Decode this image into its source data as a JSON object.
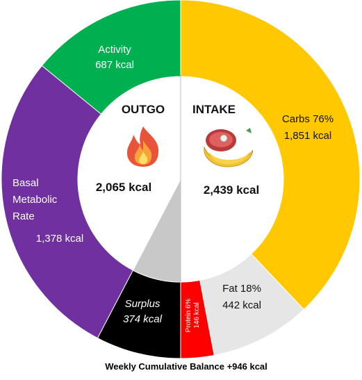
{
  "chart_data": {
    "type": "donut",
    "footer": "Weekly Cumulative Balance +946 kcal",
    "outgo": {
      "heading": "OUTGO",
      "total_label": "2,065 kcal",
      "total": 2065,
      "icon": "flame-icon",
      "segments": [
        {
          "key": "activity",
          "name": "Activity",
          "value": 687,
          "value_label": "687 kcal",
          "color": "#00B050"
        },
        {
          "key": "bmr",
          "name": "Basal Metabolic Rate",
          "value": 1378,
          "value_label": "1,378 kcal",
          "color": "#7030A0"
        }
      ],
      "surplus": {
        "name": "Surplus",
        "value": 374,
        "value_label": "374 kcal",
        "color": "#000000",
        "inner_color": "#C8C8C8"
      }
    },
    "intake": {
      "heading": "INTAKE",
      "total_label": "2,439 kcal",
      "total": 2439,
      "icon": "food-icon",
      "segments": [
        {
          "key": "carbs",
          "name": "Carbs 76%",
          "percent": 76,
          "value": 1851,
          "value_label": "1,851 kcal",
          "color": "#FFC800"
        },
        {
          "key": "fat",
          "name": "Fat 18%",
          "percent": 18,
          "value": 442,
          "value_label": "442 kcal",
          "color": "#E6E6E6"
        },
        {
          "key": "protein",
          "name": "Protein 6%",
          "percent": 6,
          "value": 146,
          "value_label": "146 kcal",
          "color": "#FF0000"
        }
      ]
    }
  }
}
